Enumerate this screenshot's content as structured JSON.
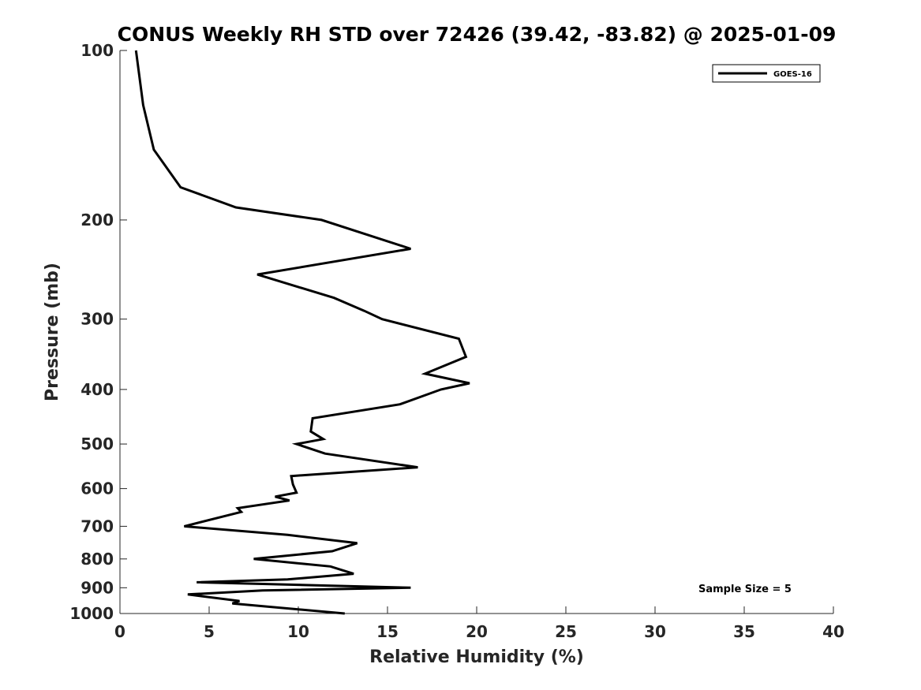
{
  "chart_data": {
    "type": "line",
    "title": "CONUS Weekly RH STD over 72426 (39.42, -83.82) @ 2025-01-09",
    "xlabel": "Relative Humidity (%)",
    "ylabel": "Pressure (mb)",
    "xlim": [
      0,
      40
    ],
    "ylim": [
      100,
      1000
    ],
    "y_scale": "log",
    "y_inverted": true,
    "x_ticks": [
      0,
      5,
      10,
      15,
      20,
      25,
      30,
      35,
      40
    ],
    "y_ticks": [
      100,
      200,
      300,
      400,
      500,
      600,
      700,
      800,
      900,
      1000
    ],
    "grid": false,
    "legend_position": "top-right",
    "annotation": "Sample Size = 5",
    "series": [
      {
        "name": "GOES-16",
        "color": "#000000",
        "points": [
          [
            0.9,
            100
          ],
          [
            1.3,
            125
          ],
          [
            1.9,
            150
          ],
          [
            3.4,
            175
          ],
          [
            6.5,
            190
          ],
          [
            11.3,
            200
          ],
          [
            16.3,
            225
          ],
          [
            7.7,
            250
          ],
          [
            12.0,
            275
          ],
          [
            13.7,
            290
          ],
          [
            14.7,
            300
          ],
          [
            19.0,
            325
          ],
          [
            19.4,
            350
          ],
          [
            17.1,
            375
          ],
          [
            19.6,
            390
          ],
          [
            18.0,
            400
          ],
          [
            15.7,
            425
          ],
          [
            10.8,
            450
          ],
          [
            10.7,
            475
          ],
          [
            11.4,
            490
          ],
          [
            9.9,
            500
          ],
          [
            11.5,
            520
          ],
          [
            16.7,
            550
          ],
          [
            9.6,
            570
          ],
          [
            9.7,
            590
          ],
          [
            9.9,
            610
          ],
          [
            8.7,
            620
          ],
          [
            9.5,
            630
          ],
          [
            6.6,
            650
          ],
          [
            6.8,
            660
          ],
          [
            3.6,
            700
          ],
          [
            9.4,
            725
          ],
          [
            13.3,
            750
          ],
          [
            11.9,
            775
          ],
          [
            7.5,
            800
          ],
          [
            11.8,
            825
          ],
          [
            13.1,
            850
          ],
          [
            9.4,
            870
          ],
          [
            4.3,
            880
          ],
          [
            16.3,
            900
          ],
          [
            8.0,
            910
          ],
          [
            3.8,
            925
          ],
          [
            6.7,
            950
          ],
          [
            6.3,
            960
          ],
          [
            12.6,
            1000
          ]
        ]
      }
    ]
  }
}
